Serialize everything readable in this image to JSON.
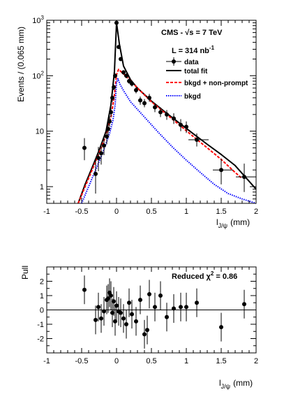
{
  "chart_data": [
    {
      "type": "scatter",
      "ylabel": "Events / (0.065 mm)",
      "xlabel_main": "l",
      "xlabel_sub": "J/ψ",
      "xlabel_unit": "(mm)",
      "xlim": [
        -1,
        2
      ],
      "ylim": [
        0.5,
        1000
      ],
      "yscale": "log",
      "xticks": [
        -1,
        -0.5,
        0,
        0.5,
        1,
        1.5,
        2
      ],
      "yticks": [
        {
          "value": 1,
          "label": "1"
        },
        {
          "value": 10,
          "label": "10"
        },
        {
          "value": 100,
          "label": "10",
          "exp": "2"
        },
        {
          "value": 1000,
          "label": "10",
          "exp": "3"
        }
      ],
      "annotations": {
        "cms_pre": "CMS - ",
        "sqrt": "√",
        "cms_post": "s = 7 TeV",
        "lumi_pre": "L = 314 nb",
        "lumi_exp": "-1"
      },
      "legend": {
        "placement": "top-right",
        "data": "data",
        "total": "total fit",
        "bkgd_np": "bkgd + non-prompt",
        "bkgd": "bkgd"
      },
      "colors": {
        "data": "#000000",
        "total": "#000000",
        "bkgd_np": "#ff0000",
        "bkgd": "#0000ff"
      },
      "series": [
        {
          "name": "data",
          "points": [
            {
              "x": -0.46,
              "y": 5,
              "lo": 3.0,
              "hi": 7.5
            },
            {
              "x": -0.3,
              "y": 1.7,
              "lo": 0.75,
              "hi": 3.2
            },
            {
              "x": -0.26,
              "y": 3.3,
              "lo": 1.9,
              "hi": 5.2
            },
            {
              "x": -0.22,
              "y": 4.0,
              "lo": 2.5,
              "hi": 6.0
            },
            {
              "x": -0.18,
              "y": 5.5,
              "lo": 3.7,
              "hi": 7.8
            },
            {
              "x": -0.14,
              "y": 8,
              "lo": 5.8,
              "hi": 10.8
            },
            {
              "x": -0.12,
              "y": 11,
              "lo": 8.4,
              "hi": 14
            },
            {
              "x": -0.1,
              "y": 15,
              "lo": 12,
              "hi": 19
            },
            {
              "x": -0.08,
              "y": 22,
              "lo": 18,
              "hi": 27
            },
            {
              "x": -0.06,
              "y": 40,
              "lo": 34,
              "hi": 46
            },
            {
              "x": -0.04,
              "y": 62,
              "lo": 55,
              "hi": 70
            },
            {
              "x": -0.02,
              "y": 100,
              "lo": 90,
              "hi": 110
            },
            {
              "x": 0.0,
              "y": 900,
              "lo": 870,
              "hi": 930
            },
            {
              "x": 0.03,
              "y": 330,
              "lo": 310,
              "hi": 350
            },
            {
              "x": 0.06,
              "y": 200,
              "lo": 185,
              "hi": 215
            },
            {
              "x": 0.1,
              "y": 115,
              "lo": 104,
              "hi": 126
            },
            {
              "x": 0.14,
              "y": 100,
              "lo": 90,
              "hi": 110
            },
            {
              "x": 0.18,
              "y": 80,
              "lo": 71,
              "hi": 89
            },
            {
              "x": 0.22,
              "y": 72,
              "lo": 64,
              "hi": 81
            },
            {
              "x": 0.28,
              "y": 55,
              "lo": 48,
              "hi": 62
            },
            {
              "x": 0.34,
              "y": 36,
              "lo": 30,
              "hi": 42
            },
            {
              "x": 0.4,
              "y": 32,
              "lo": 27,
              "hi": 38
            },
            {
              "x": 0.47,
              "y": 40,
              "lo": 34,
              "hi": 47
            },
            {
              "x": 0.55,
              "y": 27,
              "lo": 22,
              "hi": 32
            },
            {
              "x": 0.63,
              "y": 22,
              "lo": 18,
              "hi": 27
            },
            {
              "x": 0.72,
              "y": 20,
              "lo": 16,
              "hi": 24
            },
            {
              "x": 0.82,
              "y": 17,
              "lo": 13.5,
              "hi": 21
            },
            {
              "x": 0.92,
              "y": 13,
              "lo": 10,
              "hi": 16.5
            },
            {
              "x": 1.0,
              "y": 12,
              "lo": 9.3,
              "hi": 15
            },
            {
              "x": 1.15,
              "y": 7,
              "lo": 5.3,
              "hi": 9.1
            },
            {
              "x": 1.5,
              "y": 2.0,
              "lo": 1.1,
              "hi": 3.2
            },
            {
              "x": 1.83,
              "y": 1.5,
              "lo": 0.8,
              "hi": 2.6
            }
          ]
        },
        {
          "name": "total fit",
          "x": [
            -0.55,
            -0.45,
            -0.35,
            -0.25,
            -0.15,
            -0.08,
            -0.03,
            0.0,
            0.04,
            0.1,
            0.2,
            0.3,
            0.5,
            0.7,
            0.9,
            1.1,
            1.3,
            1.5,
            1.7,
            2.0
          ],
          "y": [
            0.5,
            1.1,
            2.2,
            4.5,
            10,
            30,
            120,
            900,
            380,
            150,
            85,
            60,
            35,
            22,
            14,
            9,
            5.8,
            3.8,
            2.4,
            0.9
          ]
        },
        {
          "name": "bkgd + non-prompt",
          "x": [
            -0.55,
            -0.45,
            -0.35,
            -0.25,
            -0.15,
            -0.08,
            -0.03,
            0.0,
            0.03,
            0.06,
            0.1,
            0.2,
            0.3,
            0.5,
            0.7,
            0.9,
            1.1,
            1.3,
            1.5,
            1.7,
            1.8
          ],
          "y": [
            0.5,
            1.0,
            2.0,
            4.0,
            8.5,
            18,
            45,
            105,
            130,
            120,
            108,
            82,
            60,
            34,
            21,
            13,
            8,
            5,
            3.1,
            1.8,
            1.4
          ]
        },
        {
          "name": "bkgd",
          "x": [
            -0.5,
            -0.4,
            -0.3,
            -0.2,
            -0.1,
            -0.05,
            -0.02,
            0.0,
            0.02,
            0.05,
            0.1,
            0.2,
            0.4,
            0.6,
            0.8,
            1.0,
            1.2,
            1.4,
            1.6,
            1.8,
            2.0
          ],
          "y": [
            0.5,
            1.0,
            2.0,
            4.0,
            9,
            16,
            30,
            75,
            88,
            70,
            54,
            34,
            18,
            9.5,
            5.2,
            3.0,
            1.8,
            1.1,
            0.75,
            0.6,
            0.5
          ]
        }
      ]
    },
    {
      "type": "scatter",
      "ylabel": "Pull",
      "xlabel_main": "l",
      "xlabel_sub": "J/ψ",
      "xlabel_unit": "(mm)",
      "xlim": [
        -1,
        2
      ],
      "ylim": [
        -3,
        3
      ],
      "xticks": [
        -1,
        -0.5,
        0,
        0.5,
        1,
        1.5,
        2
      ],
      "yticks": [
        -2,
        -1,
        0,
        1,
        2
      ],
      "annotation_pre": "Reduced χ",
      "annotation_exp": "2",
      "annotation_post": " = 0.86",
      "points": [
        {
          "x": -0.46,
          "y": 1.4
        },
        {
          "x": -0.3,
          "y": -0.7
        },
        {
          "x": -0.26,
          "y": 0.2
        },
        {
          "x": -0.22,
          "y": -0.6
        },
        {
          "x": -0.18,
          "y": -0.1
        },
        {
          "x": -0.14,
          "y": 0.7
        },
        {
          "x": -0.12,
          "y": 0.8
        },
        {
          "x": -0.1,
          "y": 1.2
        },
        {
          "x": -0.08,
          "y": 1.0
        },
        {
          "x": -0.06,
          "y": -0.2
        },
        {
          "x": -0.04,
          "y": 0.6
        },
        {
          "x": -0.02,
          "y": -0.8
        },
        {
          "x": 0.0,
          "y": 0.3
        },
        {
          "x": 0.03,
          "y": -0.1
        },
        {
          "x": 0.06,
          "y": -0.2
        },
        {
          "x": 0.1,
          "y": -0.6
        },
        {
          "x": 0.14,
          "y": -1.0
        },
        {
          "x": 0.18,
          "y": 0.5
        },
        {
          "x": 0.22,
          "y": -0.3
        },
        {
          "x": 0.28,
          "y": -0.8
        },
        {
          "x": 0.34,
          "y": 0.7
        },
        {
          "x": 0.4,
          "y": -1.7
        },
        {
          "x": 0.44,
          "y": -1.4
        },
        {
          "x": 0.47,
          "y": 1.1
        },
        {
          "x": 0.55,
          "y": 0.2
        },
        {
          "x": 0.63,
          "y": 1.0
        },
        {
          "x": 0.72,
          "y": -0.5
        },
        {
          "x": 0.82,
          "y": 0.1
        },
        {
          "x": 0.92,
          "y": 0.2
        },
        {
          "x": 1.0,
          "y": 0.2
        },
        {
          "x": 1.15,
          "y": 0.5
        },
        {
          "x": 1.5,
          "y": -1.2
        },
        {
          "x": 1.83,
          "y": 0.4
        }
      ]
    }
  ]
}
